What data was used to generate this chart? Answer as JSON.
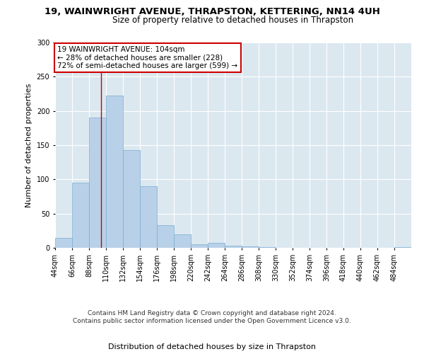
{
  "title": "19, WAINWRIGHT AVENUE, THRAPSTON, KETTERING, NN14 4UH",
  "subtitle": "Size of property relative to detached houses in Thrapston",
  "xlabel": "Distribution of detached houses by size in Thrapston",
  "ylabel": "Number of detached properties",
  "bar_color": "#b8d0e8",
  "bar_edge_color": "#7aaed0",
  "fig_background_color": "#ffffff",
  "ax_background_color": "#dce8f0",
  "grid_color": "#ffffff",
  "annotation_text": "19 WAINWRIGHT AVENUE: 104sqm\n← 28% of detached houses are smaller (228)\n72% of semi-detached houses are larger (599) →",
  "annotation_box_color": "#ffffff",
  "annotation_box_edge_color": "#cc0000",
  "vline_x": 104,
  "vline_color": "#cc0000",
  "categories": [
    "44sqm",
    "66sqm",
    "88sqm",
    "110sqm",
    "132sqm",
    "154sqm",
    "176sqm",
    "198sqm",
    "220sqm",
    "242sqm",
    "264sqm",
    "286sqm",
    "308sqm",
    "330sqm",
    "352sqm",
    "374sqm",
    "396sqm",
    "418sqm",
    "440sqm",
    "462sqm",
    "484sqm"
  ],
  "bin_edges": [
    44,
    66,
    88,
    110,
    132,
    154,
    176,
    198,
    220,
    242,
    264,
    286,
    308,
    330,
    352,
    374,
    396,
    418,
    440,
    462,
    484,
    506
  ],
  "values": [
    15,
    95,
    190,
    222,
    143,
    90,
    33,
    20,
    5,
    7,
    3,
    2,
    1,
    0,
    0,
    0,
    0,
    0,
    0,
    0,
    1
  ],
  "ylim": [
    0,
    300
  ],
  "yticks": [
    0,
    50,
    100,
    150,
    200,
    250,
    300
  ],
  "footnote": "Contains HM Land Registry data © Crown copyright and database right 2024.\nContains public sector information licensed under the Open Government Licence v3.0.",
  "title_fontsize": 9.5,
  "subtitle_fontsize": 8.5,
  "xlabel_fontsize": 8,
  "ylabel_fontsize": 8,
  "tick_fontsize": 7,
  "annotation_fontsize": 7.5,
  "footnote_fontsize": 6.5
}
